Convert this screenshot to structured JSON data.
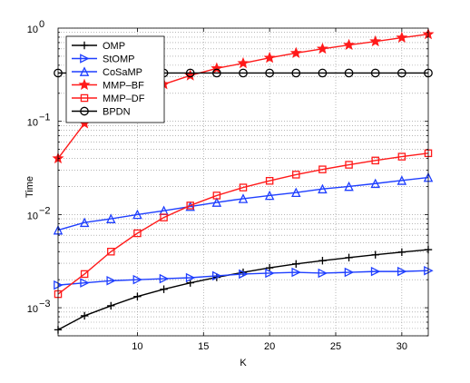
{
  "chart_data": {
    "type": "line",
    "title": "",
    "xlabel": "K",
    "ylabel": "Time",
    "xscale": "linear",
    "yscale": "log",
    "xlim": [
      4,
      32
    ],
    "ylim": [
      0.0005,
      1
    ],
    "grid": true,
    "legend_position": "top-left",
    "x_ticks": [
      10,
      15,
      20,
      25,
      30
    ],
    "x_tick_labels": [
      "10",
      "15",
      "20",
      "25",
      "30"
    ],
    "y_ticks": [
      0.001,
      0.01,
      0.1,
      1
    ],
    "y_tick_labels": [
      {
        "base": "10",
        "exp": "−3"
      },
      {
        "base": "10",
        "exp": "−2"
      },
      {
        "base": "10",
        "exp": "−1"
      },
      {
        "base": "10",
        "exp": "0"
      }
    ],
    "x": [
      4,
      6,
      8,
      10,
      12,
      14,
      16,
      18,
      20,
      22,
      24,
      26,
      28,
      30,
      32
    ],
    "series": [
      {
        "name": "OMP",
        "color": "#000000",
        "marker": "plus",
        "values": [
          0.00058,
          0.00082,
          0.00105,
          0.00132,
          0.00158,
          0.00185,
          0.00212,
          0.0024,
          0.00268,
          0.00295,
          0.0032,
          0.00345,
          0.0037,
          0.00395,
          0.0042
        ]
      },
      {
        "name": "StOMP",
        "color": "#1f3fff",
        "marker": "triangle-right",
        "values": [
          0.00175,
          0.00185,
          0.00195,
          0.002,
          0.00205,
          0.0021,
          0.0022,
          0.0023,
          0.00235,
          0.0024,
          0.00235,
          0.0024,
          0.00245,
          0.00245,
          0.0025
        ]
      },
      {
        "name": "CoSaMP",
        "color": "#1f3fff",
        "marker": "triangle-up",
        "values": [
          0.0068,
          0.0082,
          0.009,
          0.01,
          0.011,
          0.0122,
          0.0135,
          0.0148,
          0.016,
          0.0172,
          0.0188,
          0.02,
          0.0215,
          0.0232,
          0.025
        ]
      },
      {
        "name": "MMP–BF",
        "color": "#ff1a1a",
        "marker": "star",
        "values": [
          0.04,
          0.095,
          0.17,
          0.2,
          0.25,
          0.31,
          0.37,
          0.42,
          0.48,
          0.54,
          0.6,
          0.66,
          0.72,
          0.79,
          0.86
        ]
      },
      {
        "name": "MMP–DF",
        "color": "#ff1a1a",
        "marker": "square",
        "values": [
          0.0014,
          0.0023,
          0.004,
          0.0063,
          0.0093,
          0.0125,
          0.016,
          0.0195,
          0.023,
          0.0268,
          0.0305,
          0.0342,
          0.038,
          0.0418,
          0.0455
        ]
      },
      {
        "name": "BPDN",
        "color": "#000000",
        "marker": "circle",
        "values": [
          0.33,
          0.33,
          0.33,
          0.33,
          0.33,
          0.33,
          0.33,
          0.33,
          0.33,
          0.33,
          0.33,
          0.33,
          0.33,
          0.33,
          0.33
        ]
      }
    ]
  }
}
